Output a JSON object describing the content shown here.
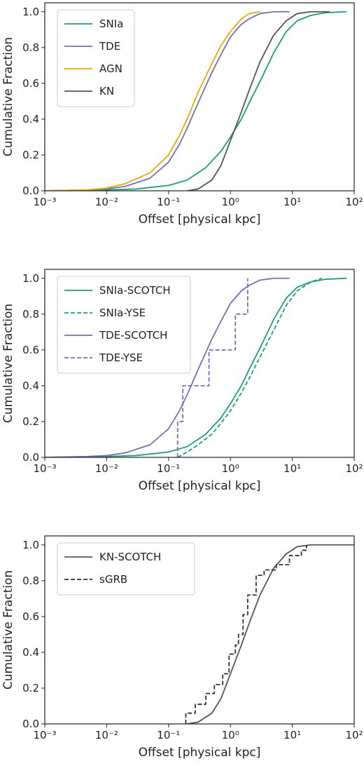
{
  "chart_data": [
    {
      "type": "line",
      "panel": "top",
      "xlabel": "Offset [physical kpc]",
      "ylabel": "Cumulative Fraction",
      "xscale": "log",
      "xlim": [
        0.001,
        100
      ],
      "ylim": [
        0,
        1.05
      ],
      "xticks": [
        {
          "value": 0.001,
          "label": "10⁻³"
        },
        {
          "value": 0.01,
          "label": "10⁻²"
        },
        {
          "value": 0.1,
          "label": "10⁻¹"
        },
        {
          "value": 1,
          "label": "10⁰"
        },
        {
          "value": 10,
          "label": "10¹"
        },
        {
          "value": 100,
          "label": "10²"
        }
      ],
      "yticks": [
        {
          "value": 0.0,
          "label": "0.0"
        },
        {
          "value": 0.2,
          "label": "0.2"
        },
        {
          "value": 0.4,
          "label": "0.4"
        },
        {
          "value": 0.6,
          "label": "0.6"
        },
        {
          "value": 0.8,
          "label": "0.8"
        },
        {
          "value": 1.0,
          "label": "1.0"
        }
      ],
      "legend_position": "top-left",
      "grid": false,
      "series": [
        {
          "name": "SNIa",
          "color": "#1b9e77",
          "style": "solid",
          "x": [
            0.001,
            0.01,
            0.03,
            0.1,
            0.2,
            0.4,
            0.7,
            1.0,
            1.5,
            2.0,
            3.0,
            5.0,
            8.0,
            12,
            20,
            35,
            75
          ],
          "y": [
            0,
            0.005,
            0.01,
            0.03,
            0.06,
            0.13,
            0.22,
            0.3,
            0.4,
            0.49,
            0.61,
            0.77,
            0.89,
            0.95,
            0.98,
            0.995,
            1.0
          ]
        },
        {
          "name": "TDE",
          "color": "#7570b3",
          "style": "solid",
          "x": [
            0.001,
            0.005,
            0.01,
            0.02,
            0.05,
            0.1,
            0.15,
            0.2,
            0.3,
            0.5,
            0.7,
            1.0,
            1.5,
            2.0,
            3.0,
            5.0,
            9.0
          ],
          "y": [
            0,
            0.005,
            0.01,
            0.025,
            0.07,
            0.16,
            0.26,
            0.35,
            0.49,
            0.66,
            0.76,
            0.86,
            0.93,
            0.96,
            0.99,
            1.0,
            1.0
          ]
        },
        {
          "name": "AGN",
          "color": "#e6ab02",
          "style": "solid",
          "x": [
            0.001,
            0.005,
            0.01,
            0.02,
            0.05,
            0.1,
            0.15,
            0.2,
            0.3,
            0.5,
            0.7,
            1.0,
            1.5,
            2.0,
            3.0
          ],
          "y": [
            0,
            0.006,
            0.015,
            0.04,
            0.1,
            0.2,
            0.31,
            0.4,
            0.55,
            0.71,
            0.81,
            0.89,
            0.96,
            0.99,
            1.0
          ]
        },
        {
          "name": "KN",
          "color": "#555555",
          "style": "solid",
          "x": [
            0.2,
            0.3,
            0.5,
            0.7,
            1.0,
            1.5,
            2.0,
            3.0,
            5.0,
            8.0,
            12,
            20,
            40
          ],
          "y": [
            0,
            0.01,
            0.06,
            0.14,
            0.28,
            0.44,
            0.56,
            0.72,
            0.87,
            0.95,
            0.99,
            1.0,
            1.0
          ]
        }
      ]
    },
    {
      "type": "line",
      "panel": "middle",
      "xlabel": "Offset [physical kpc]",
      "ylabel": "Cumulative Fraction",
      "xscale": "log",
      "xlim": [
        0.001,
        100
      ],
      "ylim": [
        0,
        1.05
      ],
      "xticks": [
        {
          "value": 0.001,
          "label": "10⁻³"
        },
        {
          "value": 0.01,
          "label": "10⁻²"
        },
        {
          "value": 0.1,
          "label": "10⁻¹"
        },
        {
          "value": 1,
          "label": "10⁰"
        },
        {
          "value": 10,
          "label": "10¹"
        },
        {
          "value": 100,
          "label": "10²"
        }
      ],
      "yticks": [
        {
          "value": 0.0,
          "label": "0.0"
        },
        {
          "value": 0.2,
          "label": "0.2"
        },
        {
          "value": 0.4,
          "label": "0.4"
        },
        {
          "value": 0.6,
          "label": "0.6"
        },
        {
          "value": 0.8,
          "label": "0.8"
        },
        {
          "value": 1.0,
          "label": "1.0"
        }
      ],
      "legend_position": "top-left",
      "grid": false,
      "series": [
        {
          "name": "SNIa-SCOTCH",
          "color": "#1b9e77",
          "style": "solid",
          "x": [
            0.001,
            0.01,
            0.03,
            0.1,
            0.2,
            0.4,
            0.7,
            1.0,
            1.5,
            2.0,
            3.0,
            5.0,
            8.0,
            12,
            20,
            35,
            75
          ],
          "y": [
            0,
            0.005,
            0.01,
            0.03,
            0.06,
            0.13,
            0.22,
            0.3,
            0.4,
            0.49,
            0.61,
            0.77,
            0.89,
            0.95,
            0.98,
            0.995,
            1.0
          ]
        },
        {
          "name": "SNIa-YSE",
          "color": "#1b9e77",
          "style": "dashed",
          "x": [
            0.14,
            0.2,
            0.3,
            0.5,
            0.7,
            1.0,
            1.5,
            2.0,
            3.0,
            5.0,
            8.0,
            12,
            20,
            30
          ],
          "y": [
            0,
            0.03,
            0.07,
            0.13,
            0.19,
            0.26,
            0.36,
            0.44,
            0.56,
            0.71,
            0.85,
            0.93,
            0.98,
            1.0
          ]
        },
        {
          "name": "TDE-SCOTCH",
          "color": "#7570b3",
          "style": "solid",
          "x": [
            0.001,
            0.005,
            0.01,
            0.02,
            0.05,
            0.1,
            0.15,
            0.2,
            0.3,
            0.5,
            0.7,
            1.0,
            1.5,
            2.0,
            3.0,
            5.0,
            9.0
          ],
          "y": [
            0,
            0.005,
            0.01,
            0.025,
            0.07,
            0.16,
            0.26,
            0.35,
            0.49,
            0.66,
            0.76,
            0.86,
            0.93,
            0.96,
            0.99,
            1.0,
            1.0
          ]
        },
        {
          "name": "TDE-YSE",
          "color": "#7570b3",
          "style": "dashed",
          "step": true,
          "x": [
            0.14,
            0.17,
            0.45,
            1.2,
            1.9
          ],
          "y": [
            0.2,
            0.4,
            0.6,
            0.8,
            1.0
          ]
        }
      ]
    },
    {
      "type": "line",
      "panel": "bottom",
      "xlabel": "Offset [physical kpc]",
      "ylabel": "Cumulative Fraction",
      "xscale": "log",
      "xlim": [
        0.001,
        100
      ],
      "ylim": [
        0,
        1.05
      ],
      "xticks": [
        {
          "value": 0.001,
          "label": "10⁻³"
        },
        {
          "value": 0.01,
          "label": "10⁻²"
        },
        {
          "value": 0.1,
          "label": "10⁻¹"
        },
        {
          "value": 1,
          "label": "10⁰"
        },
        {
          "value": 10,
          "label": "10¹"
        },
        {
          "value": 100,
          "label": "10²"
        }
      ],
      "yticks": [
        {
          "value": 0.0,
          "label": "0.0"
        },
        {
          "value": 0.2,
          "label": "0.2"
        },
        {
          "value": 0.4,
          "label": "0.4"
        },
        {
          "value": 0.6,
          "label": "0.6"
        },
        {
          "value": 0.8,
          "label": "0.8"
        },
        {
          "value": 1.0,
          "label": "1.0"
        }
      ],
      "legend_position": "top-left",
      "grid": false,
      "series": [
        {
          "name": "KN-SCOTCH",
          "color": "#555555",
          "style": "solid",
          "x": [
            0.2,
            0.3,
            0.5,
            0.7,
            1.0,
            1.5,
            2.0,
            3.0,
            5.0,
            8.0,
            12,
            20,
            40,
            100
          ],
          "y": [
            0,
            0.01,
            0.06,
            0.14,
            0.28,
            0.44,
            0.56,
            0.72,
            0.87,
            0.95,
            0.99,
            1.0,
            1.0,
            1.0
          ]
        },
        {
          "name": "sGRB",
          "color": "#333333",
          "style": "dashed",
          "step": true,
          "x": [
            0.19,
            0.27,
            0.4,
            0.55,
            0.75,
            0.95,
            1.2,
            1.35,
            1.6,
            1.9,
            2.6,
            3.5,
            5.5,
            9.0,
            14.0,
            17.0
          ],
          "y": [
            0.06,
            0.11,
            0.17,
            0.22,
            0.28,
            0.39,
            0.44,
            0.5,
            0.61,
            0.72,
            0.83,
            0.86,
            0.89,
            0.94,
            0.97,
            1.0
          ]
        }
      ]
    }
  ]
}
